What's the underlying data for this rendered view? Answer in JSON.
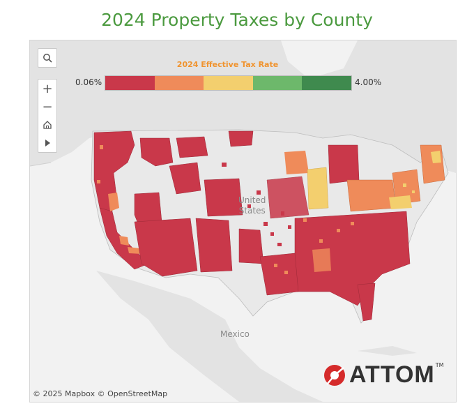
{
  "title": "2024 Property Taxes by County",
  "legend": {
    "title": "2024 Effective Tax Rate",
    "min_label": "0.06%",
    "max_label": "4.00%",
    "colors": [
      "#c9384a",
      "#ef8b5a",
      "#f3cf6e",
      "#6db86b",
      "#3f8a4e"
    ]
  },
  "geo_labels": {
    "country_us": "United States",
    "country_us_line1": "United",
    "country_us_line2": "States",
    "country_mx": "Mexico"
  },
  "controls": [
    "search-icon",
    "zoom-in-icon",
    "zoom-out-icon",
    "home-icon",
    "play-icon"
  ],
  "attribution": "© 2025 Mapbox  © OpenStreetMap",
  "logo": {
    "text": "ATTOM",
    "tm": "TM"
  },
  "map_colors": {
    "land": "#e6e6e6",
    "water": "#f4f4f4",
    "no_data": "#e8e8e8",
    "border": "#bfbfbf"
  }
}
